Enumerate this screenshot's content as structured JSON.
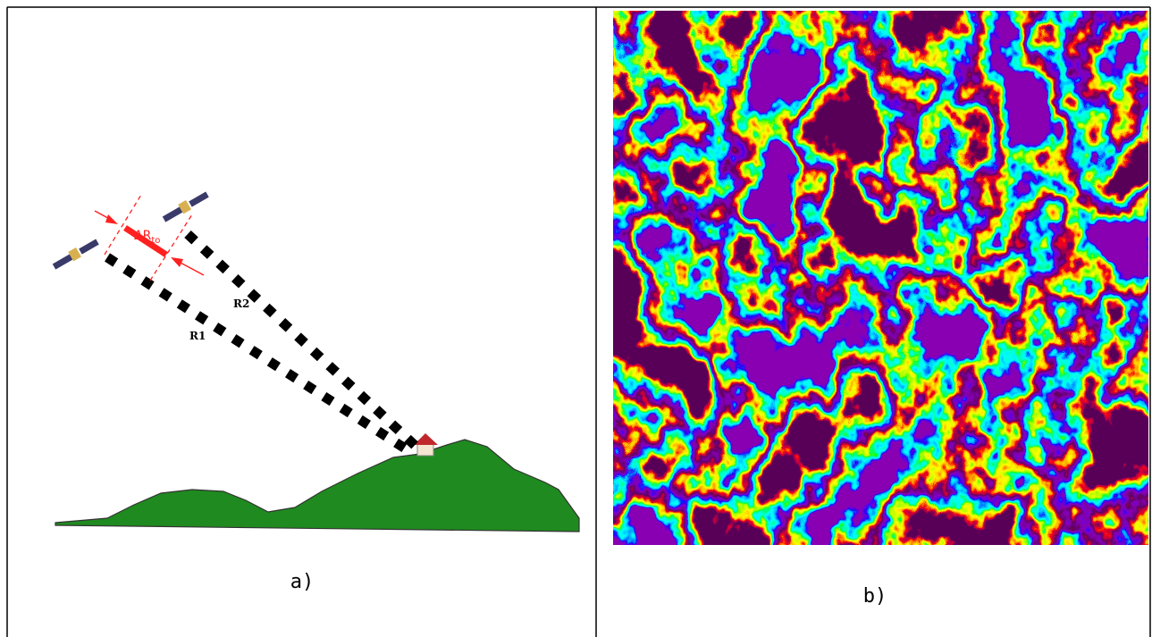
{
  "panels": [
    {
      "delta_label": "ΔR",
      "delta_subscript": "to",
      "r2_label": "R2",
      "r1_label": "R1",
      "caption": "a)"
    },
    {
      "caption": "b)"
    }
  ]
}
